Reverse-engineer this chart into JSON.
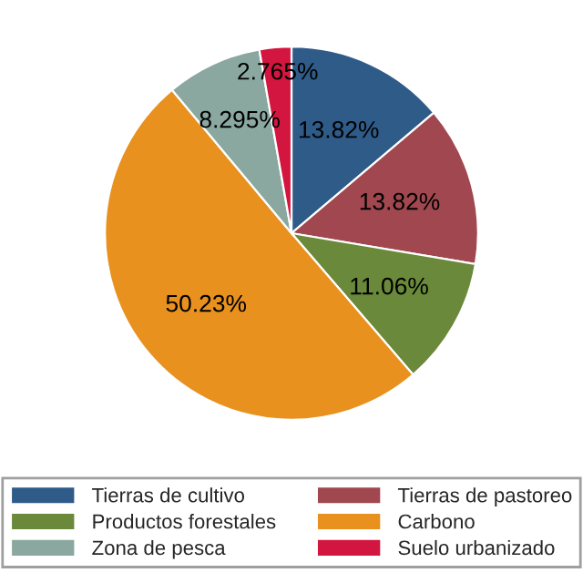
{
  "chart_data": {
    "type": "pie",
    "categories": [
      "Tierras de cultivo",
      "Tierras de pastoreo",
      "Productos forestales",
      "Carbono",
      "Zona de pesca",
      "Suelo urbanizado"
    ],
    "values": [
      13.82,
      13.82,
      11.06,
      50.23,
      8.295,
      2.765
    ],
    "value_labels": [
      "13.82%",
      "13.82%",
      "11.06%",
      "50.23%",
      "8.295%",
      "2.765%"
    ],
    "colors": [
      "#2f5b88",
      "#a0474f",
      "#6a893a",
      "#e8911f",
      "#8aa89f",
      "#d3163f"
    ],
    "legend": "bottom"
  }
}
